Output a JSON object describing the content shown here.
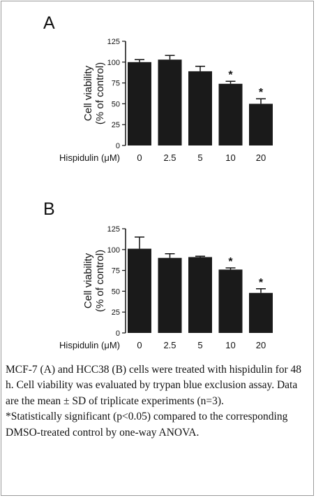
{
  "panels": [
    {
      "label": "A"
    },
    {
      "label": "B"
    }
  ],
  "chart_data": [
    {
      "type": "bar",
      "panel": "A",
      "categories": [
        "0",
        "2.5",
        "5",
        "10",
        "20"
      ],
      "values": [
        100,
        103,
        89,
        74,
        50
      ],
      "errors": [
        3,
        5,
        6,
        3,
        6
      ],
      "significant": [
        false,
        false,
        false,
        true,
        true
      ],
      "sig_marker": "*",
      "ylabel": [
        "Cell viability",
        "(% of control)"
      ],
      "xlabel": "Hispidulin (μM)",
      "ylim": [
        0,
        125
      ],
      "yticks": [
        "0",
        "25",
        "50",
        "75",
        "100",
        "125"
      ],
      "bar_color": "#1a1a1a"
    },
    {
      "type": "bar",
      "panel": "B",
      "categories": [
        "0",
        "2.5",
        "5",
        "10",
        "20"
      ],
      "values": [
        101,
        90,
        91,
        76,
        48
      ],
      "errors": [
        14,
        5,
        1,
        2,
        5
      ],
      "significant": [
        false,
        false,
        false,
        true,
        true
      ],
      "sig_marker": "*",
      "ylabel": [
        "Cell viability",
        "(% of control)"
      ],
      "xlabel": "Hispidulin (μM)",
      "ylim": [
        0,
        125
      ],
      "yticks": [
        "0",
        "25",
        "50",
        "75",
        "100",
        "125"
      ],
      "bar_color": "#1a1a1a"
    }
  ],
  "caption": {
    "main": "MCF-7 (A) and HCC38 (B) cells were treated with hispidulin for 48 h. Cell viability was evaluated by trypan blue exclusion assay. Data are the mean ± SD of triplicate experiments (n=3).",
    "note": "*Statistically significant (p<0.05) compared to the corresponding DMSO-treated control by one-way ANOVA."
  }
}
